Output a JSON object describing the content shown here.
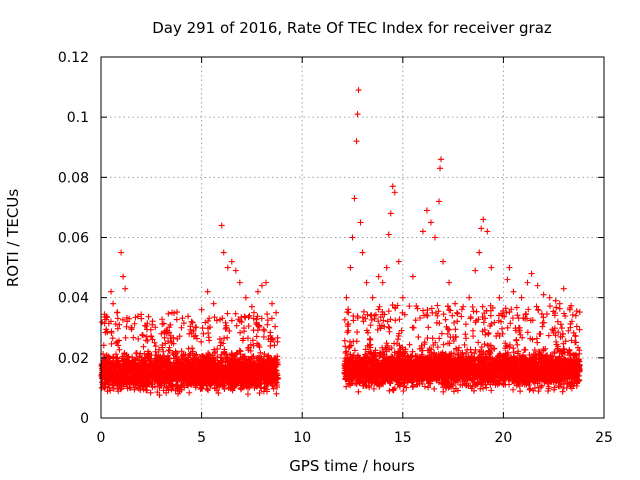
{
  "chart_data": {
    "type": "scatter",
    "title": "Day 291 of 2016, Rate Of TEC Index for receiver graz",
    "xlabel": "GPS time / hours",
    "ylabel": "ROTI / TECUs",
    "xlim": [
      0,
      25
    ],
    "ylim": [
      0,
      0.12
    ],
    "xticks": [
      "0",
      "5",
      "10",
      "15",
      "20",
      "25"
    ],
    "xtick_values": [
      0,
      5,
      10,
      15,
      20,
      25
    ],
    "yticks": [
      "0",
      "0.02",
      "0.04",
      "0.06",
      "0.08",
      "0.1",
      "0.12"
    ],
    "ytick_values": [
      0,
      0.02,
      0.04,
      0.06,
      0.08,
      0.1,
      0.12
    ],
    "grid": true,
    "marker": "+",
    "series": [
      {
        "name": "ROTI",
        "color": "#ff0000",
        "points": [
          [
            0.5,
            0.042
          ],
          [
            0.6,
            0.038
          ],
          [
            0.8,
            0.035
          ],
          [
            1.0,
            0.055
          ],
          [
            1.1,
            0.047
          ],
          [
            1.2,
            0.043
          ],
          [
            1.4,
            0.033
          ],
          [
            1.5,
            0.03
          ],
          [
            2.5,
            0.027
          ],
          [
            3.0,
            0.028
          ],
          [
            3.5,
            0.025
          ],
          [
            4.0,
            0.03
          ],
          [
            4.5,
            0.032
          ],
          [
            5.0,
            0.036
          ],
          [
            5.3,
            0.042
          ],
          [
            5.6,
            0.038
          ],
          [
            6.0,
            0.064
          ],
          [
            6.1,
            0.055
          ],
          [
            6.3,
            0.05
          ],
          [
            6.5,
            0.052
          ],
          [
            6.7,
            0.049
          ],
          [
            6.9,
            0.045
          ],
          [
            7.2,
            0.04
          ],
          [
            7.5,
            0.037
          ],
          [
            7.8,
            0.042
          ],
          [
            8.0,
            0.044
          ],
          [
            8.2,
            0.045
          ],
          [
            8.5,
            0.038
          ],
          [
            8.7,
            0.035
          ],
          [
            12.2,
            0.04
          ],
          [
            12.4,
            0.05
          ],
          [
            12.5,
            0.06
          ],
          [
            12.6,
            0.073
          ],
          [
            12.7,
            0.092
          ],
          [
            12.75,
            0.101
          ],
          [
            12.8,
            0.109
          ],
          [
            12.9,
            0.065
          ],
          [
            13.0,
            0.055
          ],
          [
            13.2,
            0.045
          ],
          [
            13.5,
            0.04
          ],
          [
            13.8,
            0.047
          ],
          [
            14.0,
            0.045
          ],
          [
            14.2,
            0.05
          ],
          [
            14.3,
            0.061
          ],
          [
            14.4,
            0.068
          ],
          [
            14.5,
            0.077
          ],
          [
            14.6,
            0.075
          ],
          [
            14.8,
            0.052
          ],
          [
            15.0,
            0.04
          ],
          [
            15.5,
            0.047
          ],
          [
            16.0,
            0.062
          ],
          [
            16.2,
            0.069
          ],
          [
            16.4,
            0.065
          ],
          [
            16.6,
            0.06
          ],
          [
            16.8,
            0.072
          ],
          [
            16.85,
            0.083
          ],
          [
            16.9,
            0.086
          ],
          [
            17.0,
            0.052
          ],
          [
            17.3,
            0.045
          ],
          [
            17.6,
            0.038
          ],
          [
            18.0,
            0.037
          ],
          [
            18.3,
            0.04
          ],
          [
            18.6,
            0.049
          ],
          [
            18.8,
            0.055
          ],
          [
            18.9,
            0.063
          ],
          [
            19.0,
            0.066
          ],
          [
            19.2,
            0.062
          ],
          [
            19.4,
            0.05
          ],
          [
            19.8,
            0.04
          ],
          [
            20.2,
            0.046
          ],
          [
            20.3,
            0.05
          ],
          [
            20.5,
            0.042
          ],
          [
            20.9,
            0.04
          ],
          [
            21.2,
            0.045
          ],
          [
            21.4,
            0.048
          ],
          [
            21.7,
            0.044
          ],
          [
            22.0,
            0.041
          ],
          [
            22.3,
            0.04
          ],
          [
            22.6,
            0.039
          ],
          [
            22.8,
            0.038
          ],
          [
            23.0,
            0.043
          ],
          [
            23.3,
            0.036
          ],
          [
            23.6,
            0.034
          ]
        ],
        "dense_bands": [
          {
            "x_range": [
              0.0,
              8.8
            ],
            "y_range": [
              0.005,
              0.03
            ],
            "typical": 0.015
          },
          {
            "x_range": [
              12.1,
              23.8
            ],
            "y_range": [
              0.004,
              0.032
            ],
            "typical": 0.016
          }
        ],
        "data_gap": [
          8.8,
          12.1
        ]
      }
    ]
  }
}
